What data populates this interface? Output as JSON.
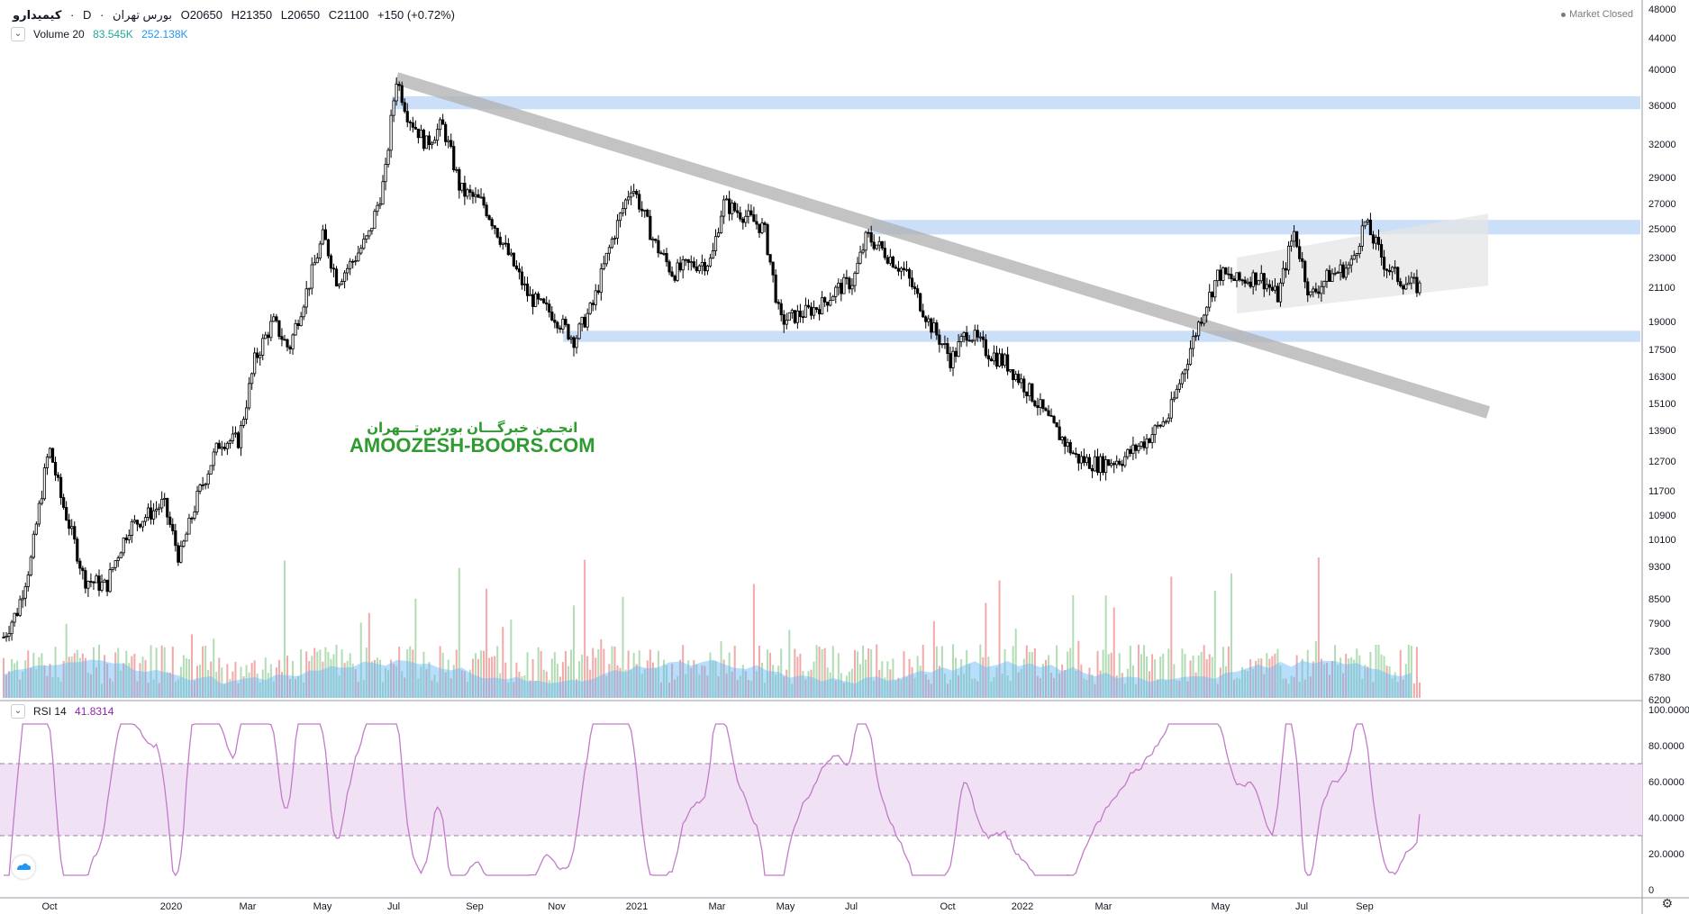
{
  "header": {
    "symbol": "کیمیدارو",
    "interval": "D",
    "exchange": "بورس تهران",
    "open": "O20650",
    "high": "H21350",
    "low": "L20650",
    "close": "C21100",
    "change": "+150 (+0.72%)",
    "market_status": "Market Closed"
  },
  "volume_legend": {
    "label": "Volume 20",
    "v1": "83.545K",
    "v2": "252.138K"
  },
  "rsi_legend": {
    "label": "RSI 14",
    "value": "41.8314"
  },
  "watermark": {
    "fa": "انجـمن خبرگـــان بورس تـــهران",
    "en": "AMOOZESH-BOORS.COM"
  },
  "colors": {
    "candle": "#000000",
    "zone": "#b7d1f5",
    "trendline": "#b0b0b0",
    "volume_up": "#a5d6a7",
    "volume_down": "#ef9a9a",
    "volume_ma": "#64b5f6",
    "rsi_line": "#c27bc9",
    "rsi_band": "#f1e1f4"
  },
  "chart_data": {
    "type": "candlestick",
    "price_axis_ticks": [
      48000,
      44000,
      40000,
      36000,
      32000,
      29000,
      27000,
      25000,
      23000,
      21100,
      19000,
      17500,
      16300,
      15100,
      13900,
      12700,
      11700,
      10900,
      10100,
      9300,
      8500,
      7900,
      7300,
      6780,
      6200
    ],
    "price_axis_labels": [
      "48000",
      "44000",
      "40000",
      "36000",
      "32000",
      "29000",
      "27000",
      "25000",
      "23000",
      "21100",
      "19000",
      "17500",
      "16300",
      "15100",
      "13900",
      "12700",
      "11700",
      "10900",
      "10100",
      "9300",
      "8500",
      "7900",
      "7300",
      "6780",
      "6200"
    ],
    "rsi_axis_ticks": [
      100,
      80,
      60,
      40,
      20,
      0
    ],
    "rsi_axis_labels": [
      "100.0000",
      "80.0000",
      "60.0000",
      "40.0000",
      "20.0000",
      "0"
    ],
    "time_labels": [
      "Oct",
      "2020",
      "Mar",
      "May",
      "Jul",
      "Sep",
      "Nov",
      "2021",
      "Mar",
      "May",
      "Jul",
      "Oct",
      "2022",
      "Mar",
      "May",
      "Jul",
      "Sep"
    ],
    "price_series": [
      {
        "t": 0,
        "p": 7600
      },
      {
        "t": 0.6,
        "p": 8200
      },
      {
        "t": 1.2,
        "p": 9500
      },
      {
        "t": 2.0,
        "p": 13200
      },
      {
        "t": 2.5,
        "p": 11500
      },
      {
        "t": 3.5,
        "p": 9000
      },
      {
        "t": 4.5,
        "p": 8800
      },
      {
        "t": 5.5,
        "p": 10500
      },
      {
        "t": 6.5,
        "p": 11000
      },
      {
        "t": 7.0,
        "p": 11300
      },
      {
        "t": 7.7,
        "p": 9500
      },
      {
        "t": 8.5,
        "p": 11500
      },
      {
        "t": 9.5,
        "p": 13500
      },
      {
        "t": 10.3,
        "p": 13500
      },
      {
        "t": 11.0,
        "p": 17000
      },
      {
        "t": 11.8,
        "p": 19000
      },
      {
        "t": 12.5,
        "p": 17500
      },
      {
        "t": 13.3,
        "p": 21000
      },
      {
        "t": 14.0,
        "p": 24500
      },
      {
        "t": 14.6,
        "p": 21500
      },
      {
        "t": 15.3,
        "p": 22800
      },
      {
        "t": 16.0,
        "p": 24500
      },
      {
        "t": 16.7,
        "p": 29000
      },
      {
        "t": 17.2,
        "p": 39000
      },
      {
        "t": 17.7,
        "p": 35000
      },
      {
        "t": 18.5,
        "p": 32000
      },
      {
        "t": 19.2,
        "p": 34000
      },
      {
        "t": 20.0,
        "p": 28000
      },
      {
        "t": 21.0,
        "p": 27000
      },
      {
        "t": 22.0,
        "p": 23500
      },
      {
        "t": 23.0,
        "p": 20500
      },
      {
        "t": 24.0,
        "p": 19500
      },
      {
        "t": 25.0,
        "p": 18000
      },
      {
        "t": 25.8,
        "p": 20000
      },
      {
        "t": 26.5,
        "p": 23500
      },
      {
        "t": 27.5,
        "p": 28500
      },
      {
        "t": 28.5,
        "p": 24000
      },
      {
        "t": 29.3,
        "p": 22000
      },
      {
        "t": 30.0,
        "p": 22500
      },
      {
        "t": 31.0,
        "p": 22800
      },
      {
        "t": 31.5,
        "p": 27000
      },
      {
        "t": 32.5,
        "p": 26000
      },
      {
        "t": 33.3,
        "p": 25000
      },
      {
        "t": 34.0,
        "p": 19000
      },
      {
        "t": 35.0,
        "p": 19500
      },
      {
        "t": 35.8,
        "p": 20000
      },
      {
        "t": 36.5,
        "p": 21000
      },
      {
        "t": 37.2,
        "p": 21500
      },
      {
        "t": 37.8,
        "p": 24500
      },
      {
        "t": 38.5,
        "p": 23500
      },
      {
        "t": 39.5,
        "p": 22000
      },
      {
        "t": 40.5,
        "p": 19000
      },
      {
        "t": 41.5,
        "p": 17000
      },
      {
        "t": 42.2,
        "p": 18500
      },
      {
        "t": 43.0,
        "p": 17500
      },
      {
        "t": 44.0,
        "p": 16800
      },
      {
        "t": 45.0,
        "p": 15500
      },
      {
        "t": 46.0,
        "p": 14000
      },
      {
        "t": 47.0,
        "p": 12800
      },
      {
        "t": 48.0,
        "p": 12600
      },
      {
        "t": 49.0,
        "p": 12800
      },
      {
        "t": 50.0,
        "p": 13500
      },
      {
        "t": 51.0,
        "p": 14500
      },
      {
        "t": 51.8,
        "p": 17000
      },
      {
        "t": 52.5,
        "p": 19500
      },
      {
        "t": 53.2,
        "p": 22000
      },
      {
        "t": 54.0,
        "p": 21500
      },
      {
        "t": 55.0,
        "p": 21800
      },
      {
        "t": 55.8,
        "p": 20500
      },
      {
        "t": 56.5,
        "p": 24800
      },
      {
        "t": 57.2,
        "p": 20500
      },
      {
        "t": 58.0,
        "p": 21800
      },
      {
        "t": 59.0,
        "p": 22500
      },
      {
        "t": 59.6,
        "p": 25500
      },
      {
        "t": 60.5,
        "p": 22500
      },
      {
        "t": 61.2,
        "p": 21500
      },
      {
        "t": 62.0,
        "p": 21100
      }
    ],
    "zones": [
      {
        "label": "resistance",
        "low": 35600,
        "high": 37000,
        "from_t": 17.0,
        "to_t": "end"
      },
      {
        "label": "resistance",
        "low": 24600,
        "high": 25700,
        "from_t": 38.0,
        "to_t": "end"
      },
      {
        "label": "support",
        "low": 17900,
        "high": 18500,
        "from_t": 24.5,
        "to_t": "end"
      }
    ],
    "trendline": {
      "from": {
        "t": 17.2,
        "p": 39000
      },
      "to": {
        "t": 65.0,
        "p": 14700
      }
    },
    "channel": {
      "upper": [
        {
          "t": 54.0,
          "p": 23000
        },
        {
          "t": 65.0,
          "p": 26200
        }
      ],
      "lower": [
        {
          "t": 54.0,
          "p": 19500
        },
        {
          "t": 65.0,
          "p": 21200
        }
      ]
    },
    "rsi": {
      "length": 14,
      "last": 41.8314,
      "upper_band": 70,
      "lower_band": 30
    },
    "volume": {
      "ma_length": 20,
      "last": "83.545K",
      "ma": "252.138K"
    }
  }
}
